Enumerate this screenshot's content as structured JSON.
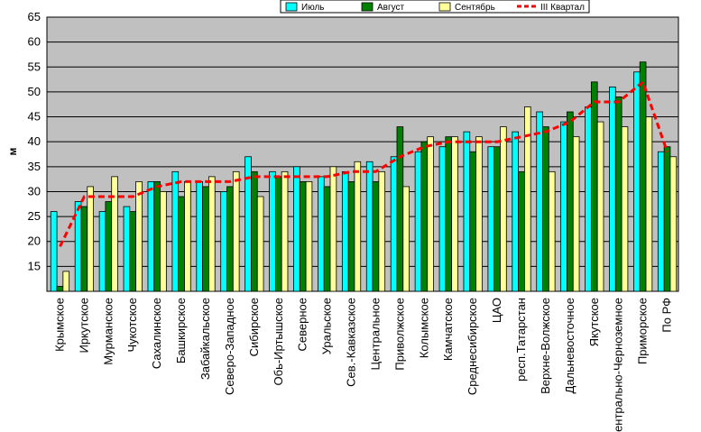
{
  "chart_data": {
    "type": "bar",
    "title": "",
    "xlabel": "",
    "ylabel": "м",
    "ylim": [
      10,
      65
    ],
    "yticks": [
      15,
      20,
      25,
      30,
      35,
      40,
      45,
      50,
      55,
      60,
      65
    ],
    "grid": true,
    "legend_position": "top-right",
    "background_color": "#c0c0c0",
    "categories": [
      "Крымское",
      "Иркутское",
      "Мурманское",
      "Чукотское",
      "Сахалинское",
      "Башкирское",
      "Забайкальское",
      "Северо-Западное",
      "Сибирское",
      "Обь-Иртышское",
      "Северное",
      "Уральское",
      "Сев.-Кавказское",
      "Центральное",
      "Приволжское",
      "Колымское",
      "Камчатское",
      "Среднесибирское",
      "ЦАО",
      "респ.Татарстан",
      "Верхне-Волжское",
      "Дальневосточное",
      "Якутское",
      "Центрально-Черноземное",
      "Приморское",
      "По РФ"
    ],
    "series": [
      {
        "name": "Июль",
        "kind": "bar",
        "color": "#00ffff",
        "values": [
          26,
          28,
          26,
          27,
          32,
          34,
          32,
          30,
          37,
          34,
          35,
          33,
          34,
          36,
          37,
          38,
          39,
          42,
          39,
          42,
          46,
          44,
          47,
          51,
          54,
          38
        ]
      },
      {
        "name": "Август",
        "kind": "bar",
        "color": "#008000",
        "values": [
          11,
          27,
          28,
          26,
          32,
          29,
          31,
          31,
          34,
          33,
          32,
          31,
          32,
          32,
          43,
          40,
          41,
          38,
          39,
          34,
          43,
          46,
          52,
          49,
          56,
          39
        ]
      },
      {
        "name": "Сентябрь",
        "kind": "bar",
        "color": "#ffff99",
        "values": [
          14,
          31,
          33,
          32,
          30,
          32,
          33,
          34,
          29,
          34,
          32,
          35,
          36,
          34,
          31,
          41,
          41,
          41,
          43,
          47,
          34,
          41,
          44,
          43,
          45,
          37
        ]
      },
      {
        "name": "III Квартал",
        "kind": "line",
        "color": "#ff0000",
        "values": [
          19,
          29,
          29,
          29,
          31,
          32,
          32,
          32,
          33,
          33,
          33,
          33,
          34,
          34,
          37,
          39,
          40,
          40,
          40,
          41,
          42,
          44,
          48,
          48,
          52,
          38
        ]
      }
    ]
  }
}
